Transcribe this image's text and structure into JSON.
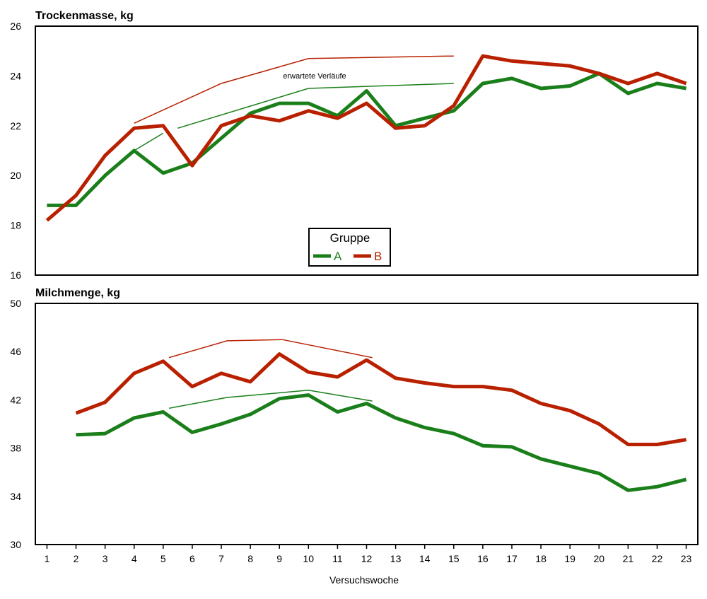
{
  "chart_data": [
    {
      "type": "line",
      "title": "Trockenmasse, kg",
      "xlabel": "",
      "ylabel": "",
      "ylim": [
        16,
        26
      ],
      "yticks": [
        16,
        18,
        20,
        22,
        24,
        26
      ],
      "xlim": [
        0.6,
        23.4
      ],
      "grid": false,
      "series": [
        {
          "name": "A",
          "color": "#1a7f1a",
          "x": [
            1,
            2,
            3,
            4,
            5,
            6,
            7,
            8,
            9,
            10,
            11,
            12,
            13,
            14,
            15,
            16,
            17,
            18,
            19,
            20,
            21,
            22,
            23
          ],
          "values": [
            18.8,
            18.8,
            20.0,
            21.0,
            20.1,
            20.5,
            21.5,
            22.5,
            22.9,
            22.9,
            22.4,
            23.4,
            22.0,
            22.3,
            22.6,
            23.7,
            23.9,
            23.5,
            23.6,
            24.1,
            23.3,
            23.7,
            23.5
          ]
        },
        {
          "name": "B",
          "color": "#b82000",
          "x": [
            1,
            2,
            3,
            4,
            5,
            6,
            7,
            8,
            9,
            10,
            11,
            12,
            13,
            14,
            15,
            16,
            17,
            18,
            19,
            20,
            21,
            22,
            23
          ],
          "values": [
            18.2,
            19.2,
            20.8,
            21.9,
            22.0,
            20.4,
            22.0,
            22.4,
            22.2,
            22.6,
            22.3,
            22.9,
            21.9,
            22.0,
            22.8,
            24.8,
            24.6,
            24.5,
            24.4,
            24.1,
            23.7,
            24.1,
            23.7
          ]
        }
      ],
      "expected_lines": [
        {
          "series": "A",
          "x": [
            4,
            5
          ],
          "values": [
            21.0,
            21.7
          ]
        },
        {
          "series": "A",
          "x": [
            5.5,
            10,
            15
          ],
          "values": [
            21.9,
            23.5,
            23.7
          ]
        },
        {
          "series": "B",
          "x": [
            4,
            7,
            10,
            15
          ],
          "values": [
            22.1,
            23.7,
            24.7,
            24.8
          ]
        }
      ],
      "annotation": "erwartete Verläufe",
      "legend": {
        "title": "Gruppe",
        "placement": "bottom-center",
        "entries": [
          {
            "label": "A",
            "color": "#1a7f1a"
          },
          {
            "label": "B",
            "color": "#b82000"
          }
        ]
      }
    },
    {
      "type": "line",
      "title": "Milchmenge, kg",
      "xlabel": "Versuchswoche",
      "ylabel": "",
      "ylim": [
        30,
        50
      ],
      "yticks": [
        30,
        34,
        38,
        42,
        46,
        50
      ],
      "xlim": [
        0.6,
        23.4
      ],
      "xticks": [
        "1",
        "2",
        "3",
        "4",
        "5",
        "6",
        "7",
        "8",
        "9",
        "10",
        "11",
        "12",
        "13",
        "14",
        "15",
        "16",
        "17",
        "18",
        "19",
        "20",
        "21",
        "22",
        "23"
      ],
      "grid": false,
      "series": [
        {
          "name": "A",
          "color": "#1a7f1a",
          "x": [
            2,
            3,
            4,
            5,
            6,
            7,
            8,
            9,
            10,
            11,
            12,
            13,
            14,
            15,
            16,
            17,
            18,
            19,
            20,
            21,
            22,
            23
          ],
          "values": [
            39.1,
            39.2,
            40.5,
            41.0,
            39.3,
            40.0,
            40.8,
            42.1,
            42.4,
            41.0,
            41.7,
            40.5,
            39.7,
            39.2,
            38.2,
            38.1,
            37.1,
            36.5,
            35.9,
            34.5,
            34.8,
            35.4
          ]
        },
        {
          "name": "B",
          "color": "#b82000",
          "x": [
            2,
            3,
            4,
            5,
            6,
            7,
            8,
            9,
            10,
            11,
            12,
            13,
            14,
            15,
            16,
            17,
            18,
            19,
            20,
            21,
            22,
            23
          ],
          "values": [
            40.9,
            41.8,
            44.2,
            45.2,
            43.1,
            44.2,
            43.5,
            45.8,
            44.3,
            43.9,
            45.3,
            43.8,
            43.4,
            43.1,
            43.1,
            42.8,
            41.7,
            41.1,
            40.0,
            38.3,
            38.3,
            38.7
          ]
        }
      ],
      "expected_lines": [
        {
          "series": "A",
          "x": [
            5.2,
            7.2,
            10,
            12.2
          ],
          "values": [
            41.3,
            42.2,
            42.8,
            41.9
          ]
        },
        {
          "series": "B",
          "x": [
            5.2,
            7.2,
            9.1,
            12.2
          ],
          "values": [
            45.5,
            46.9,
            47.0,
            45.5
          ]
        }
      ]
    }
  ]
}
